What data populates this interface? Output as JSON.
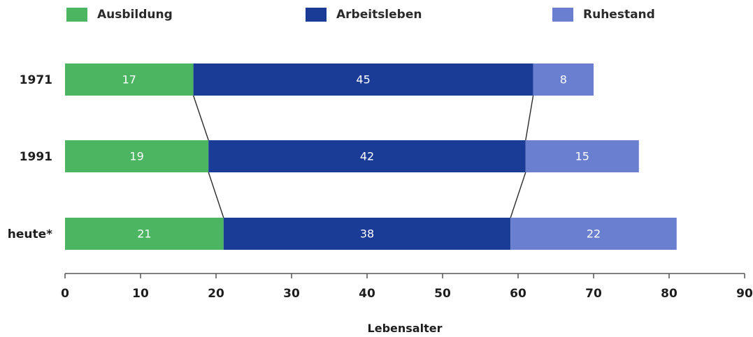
{
  "legend": [
    {
      "label": "Ausbildung",
      "color": "#4cb561"
    },
    {
      "label": "Arbeitsleben",
      "color": "#1b3c96"
    },
    {
      "label": "Ruhestand",
      "color": "#6a7fd0"
    }
  ],
  "chart_data": {
    "type": "bar",
    "orientation": "horizontal",
    "stacked": true,
    "categories": [
      "1971",
      "1991",
      "heute*"
    ],
    "series": [
      {
        "name": "Ausbildung",
        "values": [
          17,
          19,
          21
        ]
      },
      {
        "name": "Arbeitsleben",
        "values": [
          45,
          42,
          38
        ]
      },
      {
        "name": "Ruhestand",
        "values": [
          8,
          15,
          22
        ]
      }
    ],
    "xlabel": "Lebensalter",
    "xlim": [
      0,
      90
    ],
    "xticks": [
      0,
      10,
      20,
      30,
      40,
      50,
      60,
      70,
      80,
      90
    ],
    "legend_position": "top",
    "connector_lines": true
  }
}
